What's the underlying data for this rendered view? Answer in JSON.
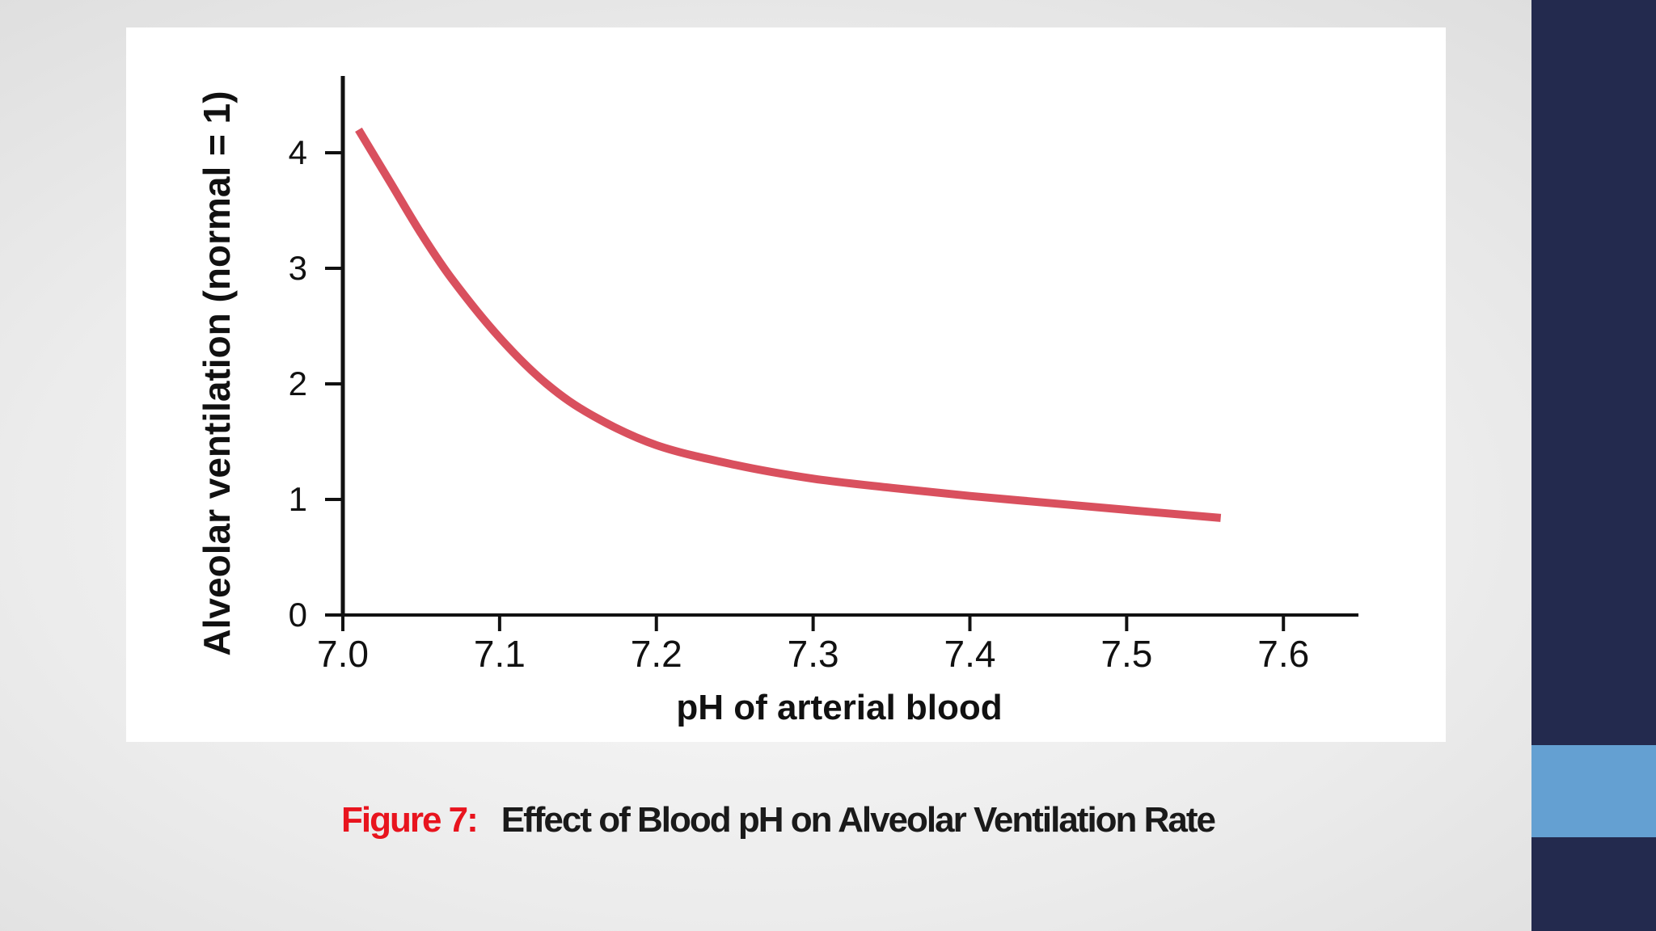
{
  "colors": {
    "accent_bar": "#232a4e",
    "accent_block": "#64a0d2",
    "curve": "#d9505e",
    "caption_label": "#e8141e"
  },
  "chart_data": {
    "type": "line",
    "title": "",
    "xlabel": "pH of arterial blood",
    "ylabel": "Alveolar ventilation (normal = 1)",
    "xlim": [
      7.0,
      7.62
    ],
    "ylim": [
      0,
      4.6
    ],
    "xticks": [
      7.0,
      7.1,
      7.2,
      7.3,
      7.4,
      7.5,
      7.6
    ],
    "xtick_labels": [
      "7.0",
      "7.1",
      "7.2",
      "7.3",
      "7.4",
      "7.5",
      "7.6"
    ],
    "yticks": [
      0,
      1,
      2,
      3,
      4
    ],
    "ytick_labels": [
      "0",
      "1",
      "2",
      "3",
      "4"
    ],
    "grid": false,
    "series": [
      {
        "name": "Alveolar ventilation",
        "x": [
          7.01,
          7.03,
          7.05,
          7.07,
          7.1,
          7.13,
          7.16,
          7.2,
          7.25,
          7.3,
          7.35,
          7.4,
          7.45,
          7.5,
          7.56
        ],
        "y": [
          4.2,
          3.75,
          3.3,
          2.9,
          2.4,
          2.0,
          1.72,
          1.47,
          1.3,
          1.18,
          1.1,
          1.03,
          0.97,
          0.91,
          0.84
        ]
      }
    ]
  },
  "caption": {
    "label": "Figure 7:",
    "text": "Effect of Blood pH on Alveolar Ventilation Rate"
  }
}
